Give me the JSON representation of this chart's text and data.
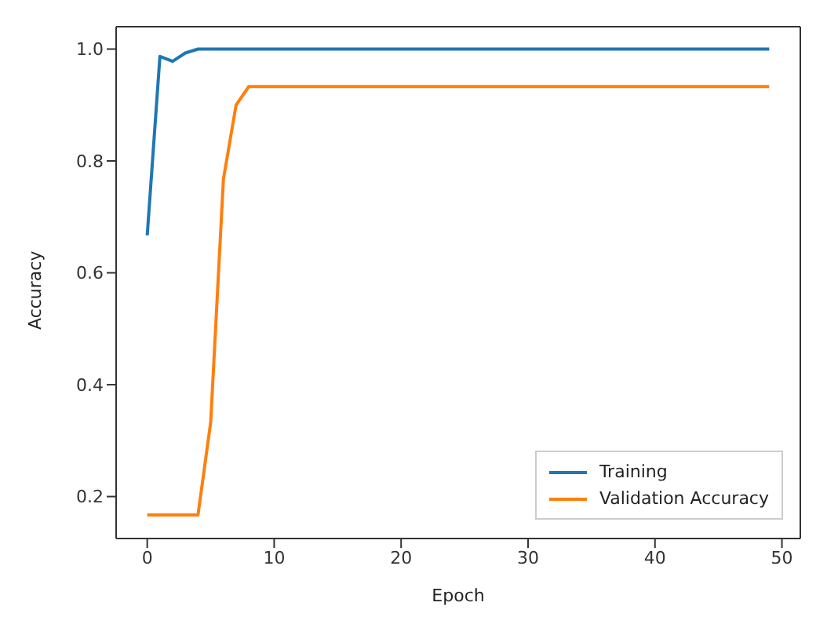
{
  "chart_data": {
    "type": "line",
    "xlabel": "Epoch",
    "ylabel": "Accuracy",
    "x": [
      0,
      1,
      2,
      3,
      4,
      5,
      6,
      7,
      8,
      9,
      10,
      11,
      12,
      13,
      14,
      15,
      16,
      17,
      18,
      19,
      20,
      21,
      22,
      23,
      24,
      25,
      26,
      27,
      28,
      29,
      30,
      31,
      32,
      33,
      34,
      35,
      36,
      37,
      38,
      39,
      40,
      41,
      42,
      43,
      44,
      45,
      46,
      47,
      48,
      49
    ],
    "series": [
      {
        "name": "Training",
        "color": "#1f77b4",
        "values": [
          0.667,
          0.987,
          0.978,
          0.993,
          1.0,
          1.0,
          1.0,
          1.0,
          1.0,
          1.0,
          1.0,
          1.0,
          1.0,
          1.0,
          1.0,
          1.0,
          1.0,
          1.0,
          1.0,
          1.0,
          1.0,
          1.0,
          1.0,
          1.0,
          1.0,
          1.0,
          1.0,
          1.0,
          1.0,
          1.0,
          1.0,
          1.0,
          1.0,
          1.0,
          1.0,
          1.0,
          1.0,
          1.0,
          1.0,
          1.0,
          1.0,
          1.0,
          1.0,
          1.0,
          1.0,
          1.0,
          1.0,
          1.0,
          1.0,
          1.0
        ]
      },
      {
        "name": "Validation Accuracy",
        "color": "#ff7f0e",
        "values": [
          0.167,
          0.167,
          0.167,
          0.167,
          0.167,
          0.333,
          0.767,
          0.9,
          0.933,
          0.933,
          0.933,
          0.933,
          0.933,
          0.933,
          0.933,
          0.933,
          0.933,
          0.933,
          0.933,
          0.933,
          0.933,
          0.933,
          0.933,
          0.933,
          0.933,
          0.933,
          0.933,
          0.933,
          0.933,
          0.933,
          0.933,
          0.933,
          0.933,
          0.933,
          0.933,
          0.933,
          0.933,
          0.933,
          0.933,
          0.933,
          0.933,
          0.933,
          0.933,
          0.933,
          0.933,
          0.933,
          0.933,
          0.933,
          0.933,
          0.933
        ]
      }
    ],
    "xlim": [
      -2.45,
      51.45
    ],
    "xticks": [
      0,
      10,
      20,
      30,
      40,
      50
    ],
    "ylim": [
      0.125,
      1.04
    ],
    "yticks": [
      0.2,
      0.4,
      0.6,
      0.8,
      {
        "value": 1,
        "label": "1.0"
      }
    ],
    "grid": false,
    "legend": "bottom right",
    "marker": "none",
    "line_style": "solid"
  }
}
